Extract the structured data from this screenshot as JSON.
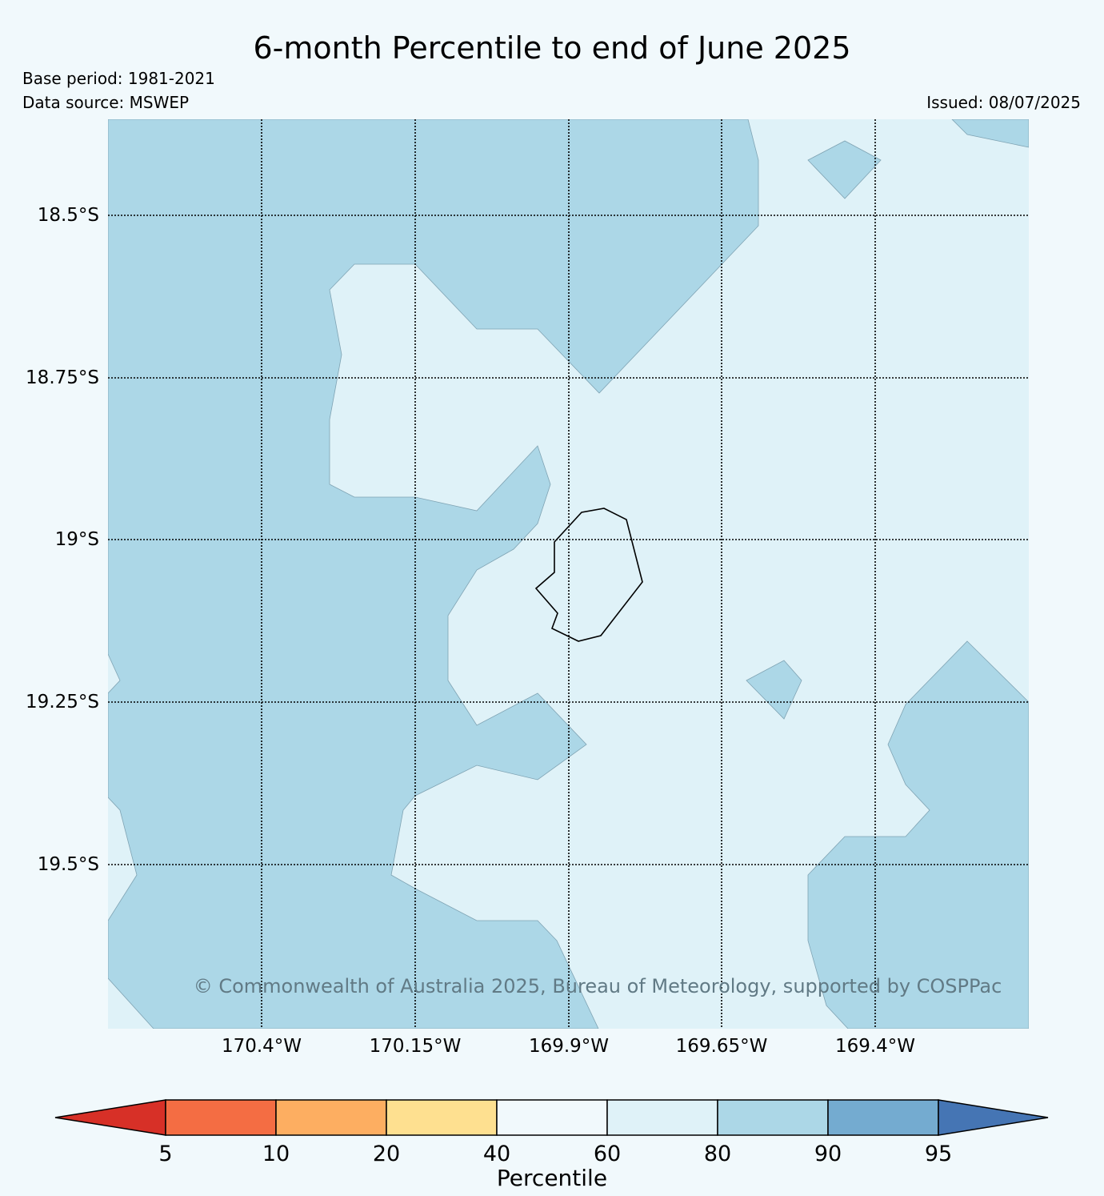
{
  "title": "6-month Percentile to end of June 2025",
  "meta": {
    "base_period": "Base period: 1981-2021",
    "data_source": "Data source: MSWEP",
    "issued": "Issued: 08/07/2025"
  },
  "map": {
    "lat_labels": [
      "18.5°S",
      "18.75°S",
      "19°S",
      "19.25°S",
      "19.5°S"
    ],
    "lon_labels": [
      "170.4°W",
      "170.15°W",
      "169.9°W",
      "169.65°W",
      "169.4°W"
    ],
    "copyright": "© Commonwealth of Australia 2025, Bureau of Meteorology, supported by COSPPac",
    "fill_colors": {
      "band_60_80": "#dff2f8",
      "band_80_90": "#acd7e7"
    }
  },
  "colorbar": {
    "label": "Percentile",
    "ticks": [
      "5",
      "10",
      "20",
      "40",
      "60",
      "80",
      "90",
      "95"
    ],
    "colors": [
      "#d73027",
      "#f46d43",
      "#fdae61",
      "#fee090",
      "#f1f9fc",
      "#dff2f8",
      "#acd7e7",
      "#74abd0",
      "#4575b4"
    ]
  }
}
